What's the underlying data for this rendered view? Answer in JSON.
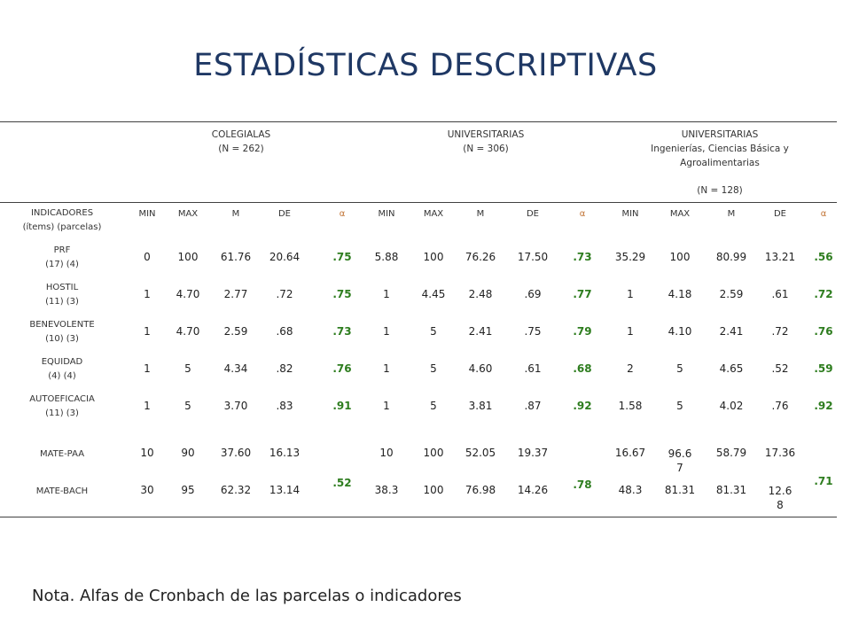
{
  "title": "ESTADÍSTICAS DESCRIPTIVAS",
  "groups": [
    {
      "lines": [
        "COLEGIALAS",
        "(N = 262)"
      ]
    },
    {
      "lines": [
        "UNIVERSITARIAS",
        "(N = 306)"
      ]
    },
    {
      "lines": [
        "UNIVERSITARIAS",
        "Ingenierías, Ciencias Básica y",
        "Agroalimentarias",
        "(N = 128)"
      ]
    }
  ],
  "indicator_header": [
    "INDICADORES",
    "(ítems) (parcelas)"
  ],
  "col_headers": [
    "MIN",
    "MAX",
    "M",
    "DE",
    "α",
    "MIN",
    "MAX",
    "M",
    "DE",
    "α",
    "MIN",
    "MAX",
    "M",
    "DE",
    "α"
  ],
  "rows": [
    {
      "label": [
        "PRF",
        "(17)  (4)"
      ],
      "vals": [
        "0",
        "100",
        "61.76",
        "20.64",
        ".75",
        "5.88",
        "100",
        "76.26",
        "17.50",
        ".73",
        "35.29",
        "100",
        "80.99",
        "13.21",
        ".56"
      ]
    },
    {
      "label": [
        "HOSTIL",
        "(11)  (3)"
      ],
      "vals": [
        "1",
        "4.70",
        "2.77",
        ".72",
        ".75",
        "1",
        "4.45",
        "2.48",
        ".69",
        ".77",
        "1",
        "4.18",
        "2.59",
        ".61",
        ".72"
      ]
    },
    {
      "label": [
        "BENEVOLENTE",
        "(10)  (3)"
      ],
      "vals": [
        "1",
        "4.70",
        "2.59",
        ".68",
        ".73",
        "1",
        "5",
        "2.41",
        ".75",
        ".79",
        "1",
        "4.10",
        "2.41",
        ".72",
        ".76"
      ]
    },
    {
      "label": [
        "EQUIDAD",
        "(4)  (4)"
      ],
      "vals": [
        "1",
        "5",
        "4.34",
        ".82",
        ".76",
        "1",
        "5",
        "4.60",
        ".61",
        ".68",
        "2",
        "5",
        "4.65",
        ".52",
        ".59"
      ]
    },
    {
      "label": [
        "AUTOEFICACIA",
        "(11)  (3)"
      ],
      "vals": [
        "1",
        "5",
        "3.70",
        ".83",
        ".91",
        "1",
        "5",
        "3.81",
        ".87",
        ".92",
        "1.58",
        "5",
        "4.02",
        ".76",
        ".92"
      ]
    }
  ],
  "mate": {
    "rows": [
      {
        "label": "MATE-PAA",
        "vals": [
          "10",
          "90",
          "37.60",
          "16.13",
          "10",
          "100",
          "52.05",
          "19.37",
          "16.67",
          "96.6\n7",
          "58.79",
          "17.36"
        ]
      },
      {
        "label": "MATE-BACH",
        "vals": [
          "30",
          "95",
          "62.32",
          "13.14",
          "38.3",
          "100",
          "76.98",
          "14.26",
          "48.3",
          "81.31",
          "81.31",
          "12.6\n8"
        ]
      }
    ],
    "alphas": [
      ".52",
      ".78",
      ".71"
    ]
  },
  "note": "Nota. Alfas de Cronbach de las parcelas o indicadores",
  "colors": {
    "title": "#1f3864",
    "alpha": "#2e7d1f",
    "alpha_header": "#c07030"
  }
}
